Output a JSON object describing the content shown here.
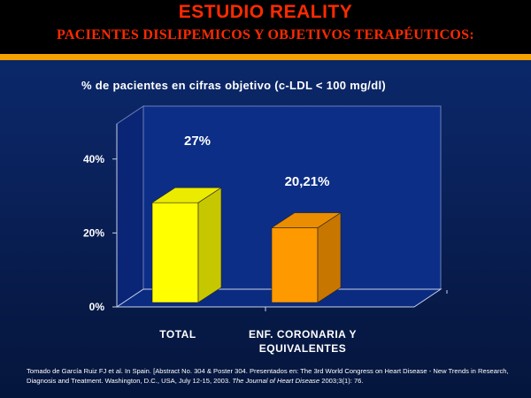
{
  "header": {
    "title": "ESTUDIO REALITY",
    "subtitle": "PACIENTES DISLIPEMICOS Y OBJETIVOS TERAPÉUTICOS:"
  },
  "colors": {
    "title_red": "#ff2a00",
    "rule_orange": "#f5a100",
    "panel_blue": "#0c2e86",
    "bar_total": "#ffff00",
    "bar_enf": "#ff9900"
  },
  "chart_data": {
    "type": "bar",
    "title": "%  de pacientes en cifras objetivo (c-LDL < 100 mg/dl)",
    "categories": [
      "TOTAL",
      "ENF. CORONARIA Y EQUIVALENTES"
    ],
    "category_lines": [
      [
        "TOTAL"
      ],
      [
        "ENF. CORONARIA Y",
        "EQUIVALENTES"
      ]
    ],
    "values": [
      27,
      20.21
    ],
    "data_labels": [
      "27%",
      "20,21%"
    ],
    "bar_colors": [
      "#ffff00",
      "#ff9900"
    ],
    "y_ticks": [
      "0%",
      "20%",
      "40%"
    ],
    "ylim": [
      0,
      50
    ],
    "style": "3d",
    "grid": false
  },
  "citation": {
    "text": "Tomado de García Ruiz FJ et al. In Spain. [Abstract No. 304 & Poster 304. Presentados en: The 3rd World Congress on Heart Disease - New Trends in Research, Diagnosis and Treatment. Washington, D.C., USA, July 12-15, 2003.",
    "journal": "The Journal of Heart Disease",
    "ref": "2003;3(1): 76."
  }
}
